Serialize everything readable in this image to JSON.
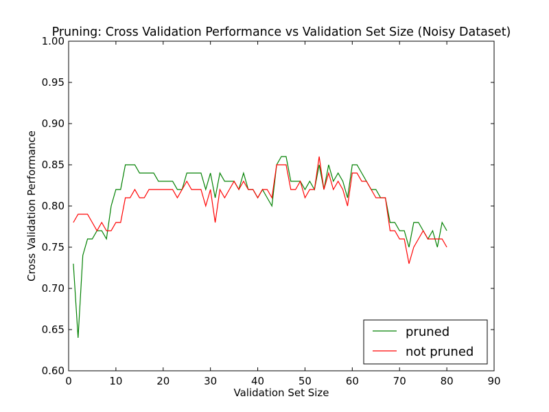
{
  "chart_data": {
    "type": "line",
    "title": "Pruning: Cross Validation Performance vs Validation Set Size (Noisy Dataset)",
    "xlabel": "Validation Set Size",
    "ylabel": "Cross Validation Performance",
    "xlim": [
      0,
      90
    ],
    "ylim": [
      0.6,
      1.0
    ],
    "xticks": [
      0,
      10,
      20,
      30,
      40,
      50,
      60,
      70,
      80,
      90
    ],
    "yticks": [
      0.6,
      0.65,
      0.7,
      0.75,
      0.8,
      0.85,
      0.9,
      0.95,
      1.0
    ],
    "xtick_labels": [
      "0",
      "10",
      "20",
      "30",
      "40",
      "50",
      "60",
      "70",
      "80",
      "90"
    ],
    "ytick_labels": [
      "0.60",
      "0.65",
      "0.70",
      "0.75",
      "0.80",
      "0.85",
      "0.90",
      "0.95",
      "1.00"
    ],
    "grid": false,
    "legend_position": "lower-right",
    "x": [
      1,
      2,
      3,
      4,
      5,
      6,
      7,
      8,
      9,
      10,
      11,
      12,
      13,
      14,
      15,
      16,
      17,
      18,
      19,
      20,
      21,
      22,
      23,
      24,
      25,
      26,
      27,
      28,
      29,
      30,
      31,
      32,
      33,
      34,
      35,
      36,
      37,
      38,
      39,
      40,
      41,
      42,
      43,
      44,
      45,
      46,
      47,
      48,
      49,
      50,
      51,
      52,
      53,
      54,
      55,
      56,
      57,
      58,
      59,
      60,
      61,
      62,
      63,
      64,
      65,
      66,
      67,
      68,
      69,
      70,
      71,
      72,
      73,
      74,
      75,
      76,
      77,
      78,
      79,
      80
    ],
    "series": [
      {
        "name": "pruned",
        "color": "#008000",
        "values": [
          0.73,
          0.64,
          0.74,
          0.76,
          0.76,
          0.77,
          0.77,
          0.76,
          0.8,
          0.82,
          0.82,
          0.85,
          0.85,
          0.85,
          0.84,
          0.84,
          0.84,
          0.84,
          0.83,
          0.83,
          0.83,
          0.83,
          0.82,
          0.82,
          0.84,
          0.84,
          0.84,
          0.84,
          0.82,
          0.84,
          0.81,
          0.84,
          0.83,
          0.83,
          0.83,
          0.82,
          0.84,
          0.82,
          0.82,
          0.81,
          0.82,
          0.81,
          0.8,
          0.85,
          0.86,
          0.86,
          0.83,
          0.83,
          0.83,
          0.82,
          0.83,
          0.82,
          0.85,
          0.82,
          0.85,
          0.83,
          0.84,
          0.83,
          0.81,
          0.85,
          0.85,
          0.84,
          0.83,
          0.82,
          0.82,
          0.81,
          0.81,
          0.78,
          0.78,
          0.77,
          0.77,
          0.75,
          0.78,
          0.78,
          0.77,
          0.76,
          0.77,
          0.75,
          0.78,
          0.77
        ]
      },
      {
        "name": "not pruned",
        "color": "#ff0000",
        "values": [
          0.78,
          0.79,
          0.79,
          0.79,
          0.78,
          0.77,
          0.78,
          0.77,
          0.77,
          0.78,
          0.78,
          0.81,
          0.81,
          0.82,
          0.81,
          0.81,
          0.82,
          0.82,
          0.82,
          0.82,
          0.82,
          0.82,
          0.81,
          0.82,
          0.83,
          0.82,
          0.82,
          0.82,
          0.8,
          0.82,
          0.78,
          0.82,
          0.81,
          0.82,
          0.83,
          0.82,
          0.83,
          0.82,
          0.82,
          0.81,
          0.82,
          0.82,
          0.81,
          0.85,
          0.85,
          0.85,
          0.82,
          0.82,
          0.83,
          0.81,
          0.82,
          0.82,
          0.86,
          0.82,
          0.84,
          0.82,
          0.83,
          0.82,
          0.8,
          0.84,
          0.84,
          0.83,
          0.83,
          0.82,
          0.81,
          0.81,
          0.81,
          0.77,
          0.77,
          0.76,
          0.76,
          0.73,
          0.75,
          0.76,
          0.77,
          0.76,
          0.76,
          0.76,
          0.76,
          0.75
        ]
      }
    ]
  }
}
